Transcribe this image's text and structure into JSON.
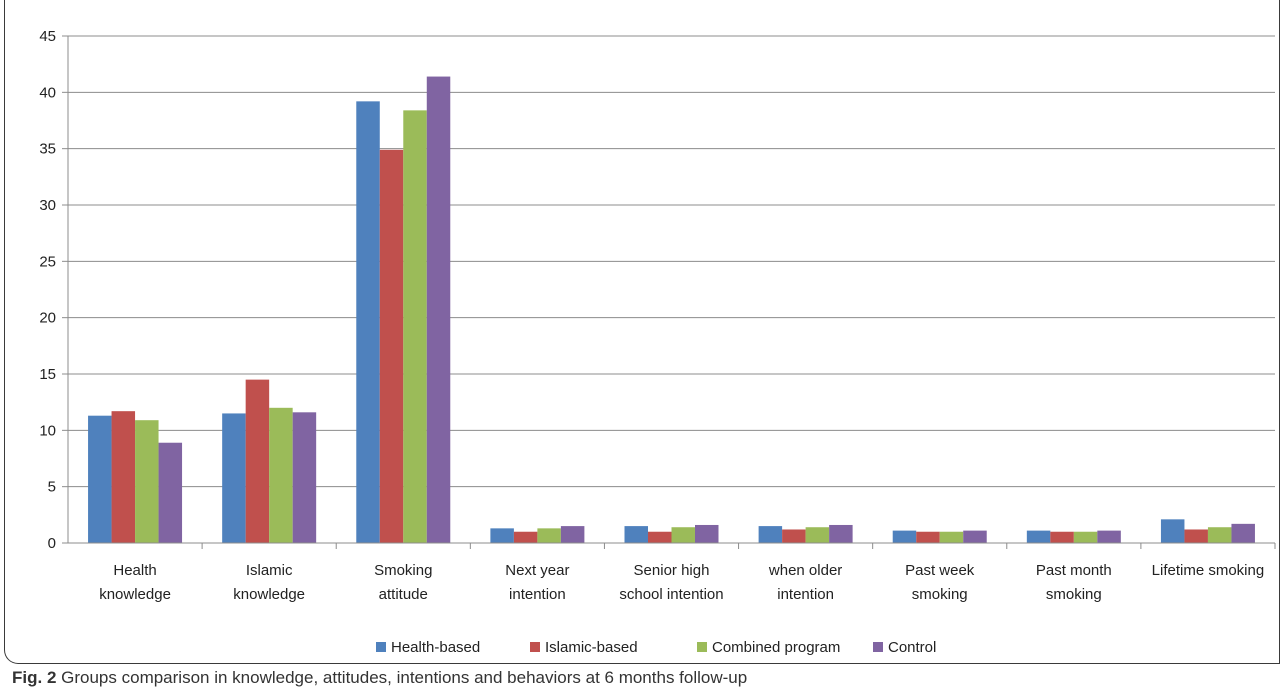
{
  "caption": {
    "label": "Fig. 2",
    "text": "Groups comparison in knowledge, attitudes, intentions and behaviors at 6 months follow-up"
  },
  "chart_data": {
    "type": "bar",
    "title": "",
    "xlabel": "",
    "ylabel": "",
    "ylim": [
      0,
      45
    ],
    "yticks": [
      0,
      5,
      10,
      15,
      20,
      25,
      30,
      35,
      40,
      45
    ],
    "grid": true,
    "legend_position": "bottom",
    "categories": [
      [
        "Health",
        "knowledge"
      ],
      [
        "Islamic",
        "knowledge"
      ],
      [
        "Smoking",
        "attitude"
      ],
      [
        "Next year",
        "intention"
      ],
      [
        "Senior high",
        "school intention"
      ],
      [
        "when older",
        "intention"
      ],
      [
        "Past week",
        "smoking"
      ],
      [
        "Past month",
        "smoking"
      ],
      [
        "Lifetime smoking"
      ]
    ],
    "series": [
      {
        "name": "Health-based",
        "color": "#4F81BD",
        "values": [
          11.3,
          11.5,
          39.2,
          1.3,
          1.5,
          1.5,
          1.1,
          1.1,
          2.1
        ]
      },
      {
        "name": "Islamic-based",
        "color": "#C0504D",
        "values": [
          11.7,
          14.5,
          34.9,
          1.0,
          1.0,
          1.2,
          1.0,
          1.0,
          1.2
        ]
      },
      {
        "name": "Combined program",
        "color": "#9BBB59",
        "values": [
          10.9,
          12.0,
          38.4,
          1.3,
          1.4,
          1.4,
          1.0,
          1.0,
          1.4
        ]
      },
      {
        "name": "Control",
        "color": "#8064A2",
        "values": [
          8.9,
          11.6,
          41.4,
          1.5,
          1.6,
          1.6,
          1.1,
          1.1,
          1.7
        ]
      }
    ]
  }
}
